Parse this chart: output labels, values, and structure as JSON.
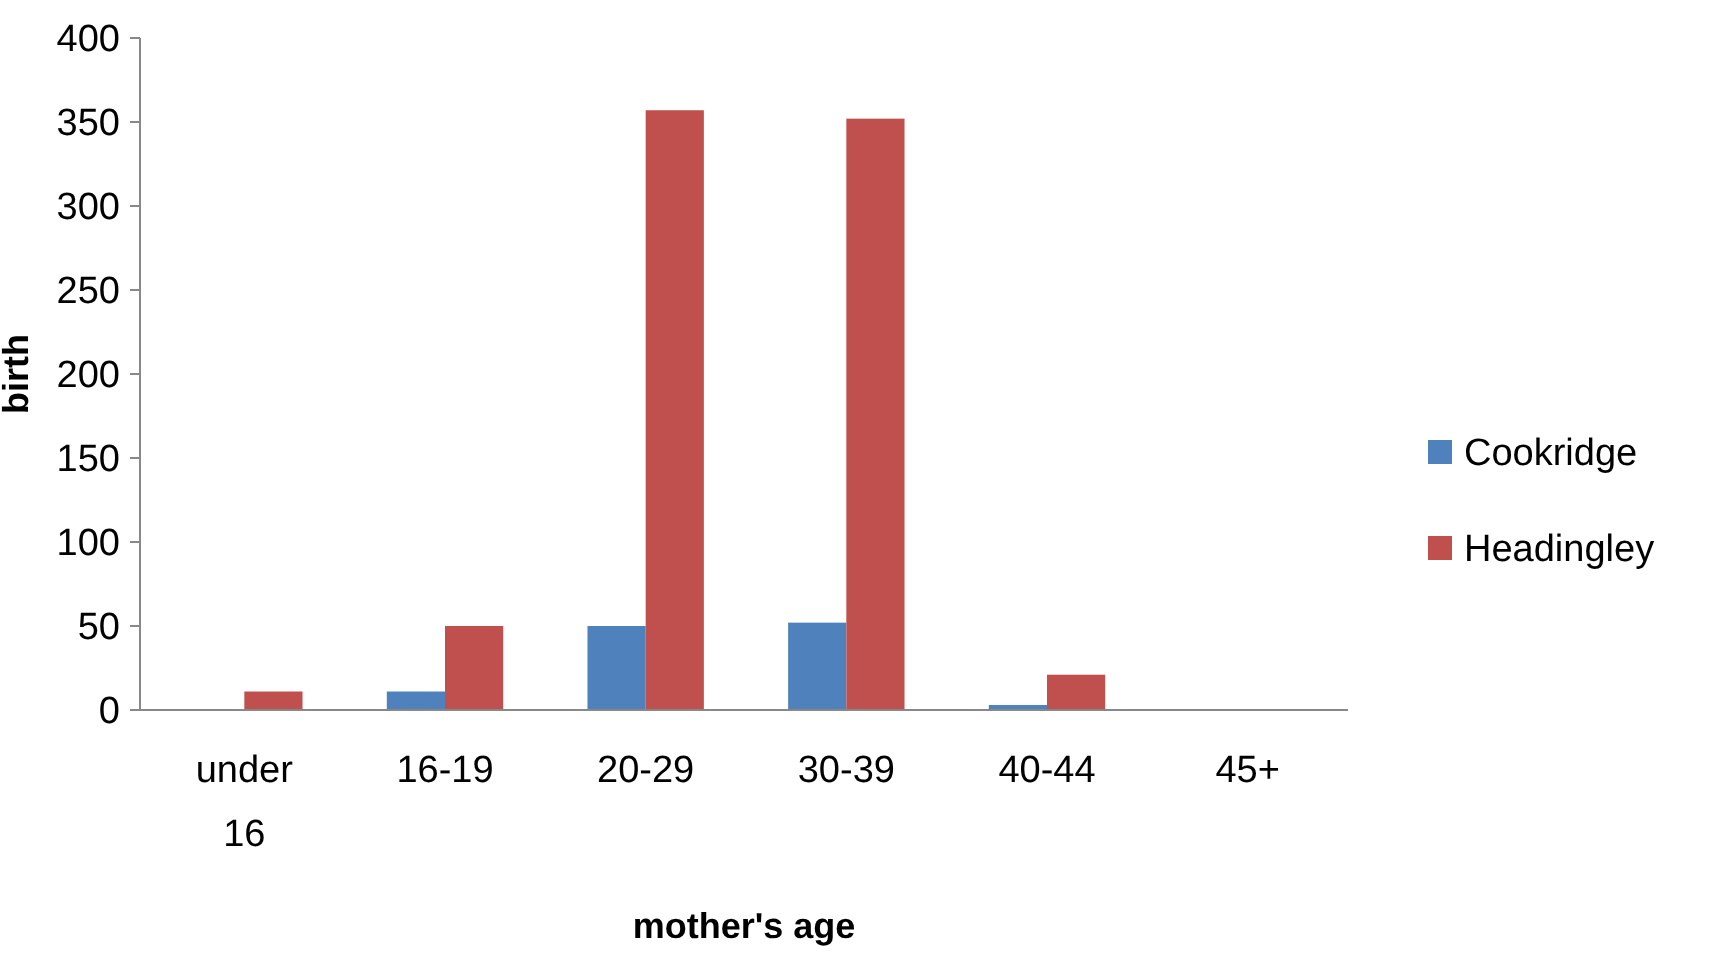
{
  "chart_data": {
    "type": "bar",
    "xlabel": "mother's age",
    "ylabel": "birth",
    "categories": [
      "under 16",
      "16-19",
      "20-29",
      "30-39",
      "40-44",
      "45+"
    ],
    "series": [
      {
        "name": "Cookridge",
        "color": "#4f81bd",
        "values": [
          0,
          11,
          50,
          52,
          3,
          0
        ]
      },
      {
        "name": "Headingley",
        "color": "#c0504d",
        "values": [
          11,
          50,
          357,
          352,
          21,
          0
        ]
      }
    ],
    "ylim": [
      0,
      400
    ],
    "yticks": [
      0,
      50,
      100,
      150,
      200,
      250,
      300,
      350,
      400
    ],
    "grid": false,
    "legend": "right"
  }
}
